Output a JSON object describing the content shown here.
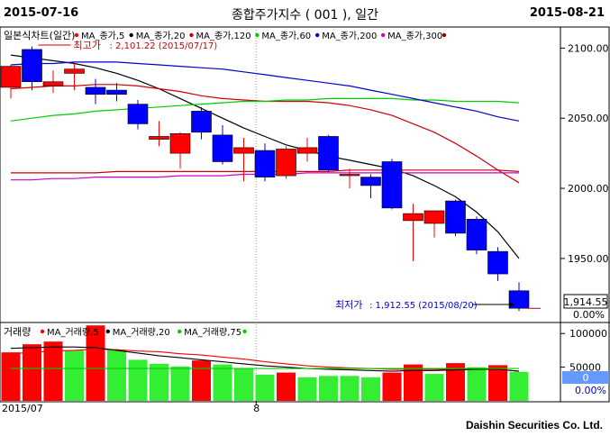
{
  "header": {
    "start_date": "2015-07-16",
    "title": "종합주가지수 ( 001 ), 일간",
    "end_date": "2015-08-21"
  },
  "footer": {
    "company": "Daishin Securities Co. Ltd."
  },
  "colors": {
    "up": "#ff0000",
    "down": "#0000ff",
    "ma5": "#ff0000",
    "ma20": "#000000",
    "ma120": "#cc0000",
    "ma60": "#00cc00",
    "ma200": "#0000cc",
    "ma300": "#cc00cc",
    "vol_up": "#ff0000",
    "vol_down": "#33ee33",
    "vol_ma5": "#ff0000",
    "vol_ma20": "#000000",
    "vol_ma75": "#00cc00"
  },
  "chart_data": [
    {
      "type": "candlestick",
      "title": "일본식차트(일간)",
      "legend": [
        {
          "name": "MA_종가,5",
          "color": "#ff0000"
        },
        {
          "name": "MA_종가,20",
          "color": "#000000"
        },
        {
          "name": "MA_종가,120",
          "color": "#cc0000"
        },
        {
          "name": "MA_종가,60",
          "color": "#00cc00"
        },
        {
          "name": "MA_종가,200",
          "color": "#0000cc"
        },
        {
          "name": "MA_종가,300",
          "color": "#cc00cc"
        }
      ],
      "y_ticks": [
        "2100.00",
        "2050.00",
        "2000.00",
        "1950.00"
      ],
      "ylim": [
        1905,
        2115
      ],
      "annotations": {
        "high": "최고가 : 2,101.22 (2015/07/17)",
        "low": "최저가 : 1,912.55 (2015/08/20)",
        "last_price": "1,914.55",
        "change_pct": "0.00%"
      },
      "candles": [
        {
          "date": "2015-07-16",
          "open": 2072,
          "high": 2088,
          "low": 2064,
          "close": 2087
        },
        {
          "date": "2015-07-17",
          "open": 2099,
          "high": 2101.2,
          "low": 2070,
          "close": 2076
        },
        {
          "date": "2015-07-20",
          "open": 2073,
          "high": 2084,
          "low": 2068,
          "close": 2076
        },
        {
          "date": "2015-07-21",
          "open": 2082,
          "high": 2089,
          "low": 2070,
          "close": 2085
        },
        {
          "date": "2015-07-22",
          "open": 2072,
          "high": 2078,
          "low": 2060,
          "close": 2067
        },
        {
          "date": "2015-07-23",
          "open": 2070,
          "high": 2075,
          "low": 2062,
          "close": 2067
        },
        {
          "date": "2015-07-24",
          "open": 2060,
          "high": 2063,
          "low": 2042,
          "close": 2046
        },
        {
          "date": "2015-07-27",
          "open": 2035,
          "high": 2048,
          "low": 2030,
          "close": 2037
        },
        {
          "date": "2015-07-28",
          "open": 2025,
          "high": 2040,
          "low": 2014,
          "close": 2039
        },
        {
          "date": "2015-07-29",
          "open": 2055,
          "high": 2058,
          "low": 2035,
          "close": 2040
        },
        {
          "date": "2015-07-30",
          "open": 2038,
          "high": 2045,
          "low": 2017,
          "close": 2019
        },
        {
          "date": "2015-07-31",
          "open": 2025,
          "high": 2036,
          "low": 2005,
          "close": 2029
        },
        {
          "date": "2015-08-03",
          "open": 2027,
          "high": 2032,
          "low": 2005,
          "close": 2008
        },
        {
          "date": "2015-08-04",
          "open": 2009,
          "high": 2030,
          "low": 2007,
          "close": 2028
        },
        {
          "date": "2015-08-05",
          "open": 2025,
          "high": 2036,
          "low": 2019,
          "close": 2029
        },
        {
          "date": "2015-08-06",
          "open": 2037,
          "high": 2038,
          "low": 2012,
          "close": 2013
        },
        {
          "date": "2015-08-07",
          "open": 2010,
          "high": 2014,
          "low": 2000,
          "close": 2010
        },
        {
          "date": "2015-08-10",
          "open": 2008,
          "high": 2010,
          "low": 1993,
          "close": 2002
        },
        {
          "date": "2015-08-11",
          "open": 2019,
          "high": 2021,
          "low": 1985,
          "close": 1986
        },
        {
          "date": "2015-08-12",
          "open": 1977,
          "high": 1989,
          "low": 1948,
          "close": 1982
        },
        {
          "date": "2015-08-13",
          "open": 1975,
          "high": 1984,
          "low": 1965,
          "close": 1984
        },
        {
          "date": "2015-08-17",
          "open": 1991,
          "high": 1992,
          "low": 1966,
          "close": 1968
        },
        {
          "date": "2015-08-18",
          "open": 1978,
          "high": 1980,
          "low": 1953,
          "close": 1956
        },
        {
          "date": "2015-08-19",
          "open": 1955,
          "high": 1958,
          "low": 1934,
          "close": 1939
        },
        {
          "date": "2015-08-20",
          "open": 1927,
          "high": 1933,
          "low": 1912.5,
          "close": 1914.5
        }
      ],
      "moving_averages": {
        "MA_종가,20": {
          "color": "#000000",
          "values": [
            2095,
            2093,
            2091,
            2089,
            2086,
            2082,
            2077,
            2071,
            2064,
            2057,
            2050,
            2043,
            2037,
            2031,
            2027,
            2023,
            2020,
            2017,
            2014,
            2009,
            2002,
            1994,
            1983,
            1969,
            1950
          ]
        },
        "MA_종가,120": {
          "color": "#cc0000",
          "values": [
            2071,
            2072,
            2073,
            2073,
            2074,
            2074,
            2073,
            2071,
            2069,
            2066,
            2064,
            2063,
            2062,
            2062,
            2062,
            2061,
            2059,
            2056,
            2052,
            2046,
            2040,
            2032,
            2023,
            2013,
            2004
          ]
        },
        "MA_종가,60": {
          "color": "#00cc00",
          "values": [
            2048,
            2050,
            2052,
            2053,
            2055,
            2056,
            2057,
            2058,
            2059,
            2060,
            2061,
            2062,
            2062,
            2063,
            2063,
            2064,
            2064,
            2064,
            2064,
            2063,
            2063,
            2062,
            2062,
            2062,
            2061
          ]
        },
        "MA_종가,200": {
          "color": "#0000cc",
          "values": [
            2088,
            2089,
            2089,
            2090,
            2090,
            2090,
            2089,
            2088,
            2087,
            2086,
            2085,
            2083,
            2081,
            2079,
            2077,
            2075,
            2073,
            2070,
            2067,
            2064,
            2061,
            2058,
            2055,
            2051,
            2048
          ]
        },
        "MA_종가,300": {
          "color": "#cc00cc",
          "values": [
            2006,
            2006,
            2007,
            2007,
            2008,
            2008,
            2008,
            2008,
            2009,
            2009,
            2009,
            2010,
            2010,
            2010,
            2011,
            2011,
            2011,
            2011,
            2011,
            2011,
            2011,
            2011,
            2011,
            2011,
            2011
          ]
        },
        "MA_종가,5": {
          "color": "#cc0000",
          "values": [
            2011,
            2011,
            2011,
            2011,
            2011,
            2012,
            2012,
            2012,
            2012,
            2012,
            2012,
            2012,
            2012,
            2012,
            2012,
            2012,
            2013,
            2013,
            2013,
            2013,
            2013,
            2013,
            2013,
            2013,
            2012
          ]
        }
      }
    },
    {
      "type": "bar",
      "title": "거래량",
      "legend": [
        {
          "name": "MA_거래량,5",
          "color": "#ff0000"
        },
        {
          "name": "MA_거래량,20",
          "color": "#000000"
        },
        {
          "name": "MA_거래량,75",
          "color": "#00cc00"
        }
      ],
      "y_ticks": [
        "100000",
        "50000"
      ],
      "ylim": [
        0,
        115000
      ],
      "current_value": "0",
      "change_pct": "0.00%",
      "x_labels": [
        "2015/07",
        "8"
      ],
      "values": [
        72000,
        84000,
        88000,
        75000,
        112000,
        76000,
        61000,
        55000,
        51000,
        60000,
        54000,
        48000,
        39000,
        42000,
        35000,
        37000,
        37000,
        35000,
        42000,
        54000,
        40000,
        56000,
        50000,
        53000,
        43000
      ],
      "colors": [
        "up",
        "up",
        "up",
        "down",
        "up",
        "down",
        "down",
        "down",
        "down",
        "up",
        "down",
        "down",
        "down",
        "up",
        "down",
        "down",
        "down",
        "down",
        "up",
        "up",
        "down",
        "up",
        "down",
        "up",
        "down"
      ],
      "ma5": [
        70000,
        72000,
        74000,
        75000,
        77000,
        76000,
        74000,
        73000,
        70000,
        68000,
        65000,
        62000,
        58000,
        55000,
        52000,
        50000,
        49000,
        48000,
        47000,
        47000,
        47000,
        47000,
        47000,
        47000,
        44000
      ],
      "ma20": [
        78000,
        79000,
        80000,
        80000,
        79000,
        75000,
        71000,
        67000,
        64000,
        61000,
        58000,
        55000,
        52000,
        50000,
        48000,
        47000,
        46000,
        45000,
        44000,
        45000,
        45000,
        46000,
        47000,
        47000,
        44000
      ],
      "ma75": [
        48000,
        48000,
        48000,
        48000,
        48000,
        48000,
        48000,
        48000,
        48000,
        48000,
        48000,
        48000,
        48000,
        48000,
        48000,
        48000,
        48000,
        48000,
        48000,
        48000,
        48000,
        48000,
        48000,
        48000,
        48000
      ]
    }
  ]
}
